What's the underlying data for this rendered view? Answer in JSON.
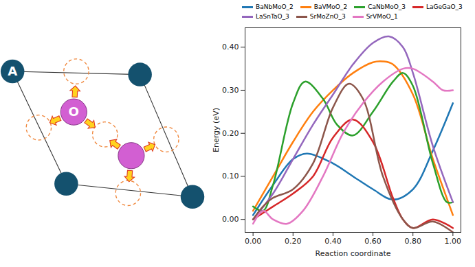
{
  "diagram": {
    "atom_A_label": "A",
    "atom_O_label": "O"
  },
  "chart_data": {
    "type": "line",
    "x_label": "Reaction coordinate",
    "y_label": "Energy (eV)",
    "xlim": [
      -0.04,
      1.04
    ],
    "ylim": [
      -0.03,
      0.445
    ],
    "xticks": [
      {
        "value": 0,
        "label": "0.00"
      },
      {
        "value": 0.2,
        "label": "0.20"
      },
      {
        "value": 0.4,
        "label": "0.40"
      },
      {
        "value": 0.6,
        "label": "0.60"
      },
      {
        "value": 0.8,
        "label": "0.80"
      },
      {
        "value": 1,
        "label": "1.00"
      }
    ],
    "yticks": [
      {
        "value": 0,
        "label": "0.00"
      },
      {
        "value": 0.1,
        "label": "0.10"
      },
      {
        "value": 0.2,
        "label": "0.20"
      },
      {
        "value": 0.3,
        "label": "0.30"
      },
      {
        "value": 0.4,
        "label": "0.40"
      }
    ],
    "grid": false,
    "legend": "top",
    "series": [
      {
        "name": "BaNbMoO_2",
        "color": "#1f77b4",
        "x": [
          0,
          0.1,
          0.2,
          0.27,
          0.4,
          0.5,
          0.6,
          0.7,
          0.8,
          0.9,
          1.0
        ],
        "values": [
          0.01,
          0.08,
          0.14,
          0.153,
          0.13,
          0.1,
          0.07,
          0.046,
          0.07,
          0.16,
          0.27
        ]
      },
      {
        "name": "BaVMoO_2",
        "color": "#ff7f0e",
        "x": [
          0,
          0.1,
          0.2,
          0.3,
          0.4,
          0.5,
          0.6,
          0.65,
          0.7,
          0.8,
          0.9,
          1.0
        ],
        "values": [
          0.02,
          0.1,
          0.18,
          0.25,
          0.3,
          0.34,
          0.365,
          0.367,
          0.36,
          0.29,
          0.14,
          0.01
        ]
      },
      {
        "name": "CaNbMoO_3",
        "color": "#2ca02c",
        "x": [
          0,
          0.05,
          0.1,
          0.2,
          0.26,
          0.35,
          0.42,
          0.5,
          0.6,
          0.7,
          0.75,
          0.8,
          0.9,
          0.97,
          1.0
        ],
        "values": [
          0.03,
          0.02,
          0.08,
          0.27,
          0.32,
          0.28,
          0.22,
          0.195,
          0.25,
          0.32,
          0.34,
          0.31,
          0.13,
          0.04,
          0.04
        ]
      },
      {
        "name": "LaGeGaO_3",
        "color": "#d62728",
        "x": [
          0,
          0.1,
          0.2,
          0.3,
          0.4,
          0.5,
          0.6,
          0.7,
          0.75,
          0.8,
          0.9,
          1.0
        ],
        "values": [
          0.0,
          0.03,
          0.06,
          0.1,
          0.19,
          0.232,
          0.18,
          0.05,
          0.0,
          -0.02,
          0.0,
          -0.02
        ]
      },
      {
        "name": "LaSnTaO_3",
        "color": "#9467bd",
        "x": [
          0,
          0.1,
          0.2,
          0.3,
          0.4,
          0.5,
          0.6,
          0.68,
          0.75,
          0.8,
          0.9,
          1.0
        ],
        "values": [
          0.0,
          0.06,
          0.14,
          0.22,
          0.29,
          0.36,
          0.41,
          0.425,
          0.4,
          0.34,
          0.17,
          0.04
        ]
      },
      {
        "name": "SrMoZnO_3",
        "color": "#8c564b",
        "x": [
          0,
          0.05,
          0.1,
          0.2,
          0.3,
          0.4,
          0.48,
          0.55,
          0.65,
          0.75,
          0.8,
          0.9,
          1.0
        ],
        "values": [
          0.0,
          0.03,
          0.05,
          0.07,
          0.13,
          0.26,
          0.315,
          0.28,
          0.1,
          0.0,
          -0.02,
          -0.005,
          -0.03
        ]
      },
      {
        "name": "SrVMoO_1",
        "color": "#e377c2",
        "x": [
          0,
          0.05,
          0.1,
          0.17,
          0.25,
          0.35,
          0.45,
          0.55,
          0.65,
          0.75,
          0.8,
          0.9,
          0.95,
          1.0
        ],
        "values": [
          -0.01,
          0.02,
          0.0,
          -0.01,
          0.02,
          0.1,
          0.2,
          0.27,
          0.32,
          0.35,
          0.35,
          0.32,
          0.3,
          0.3
        ]
      }
    ]
  }
}
